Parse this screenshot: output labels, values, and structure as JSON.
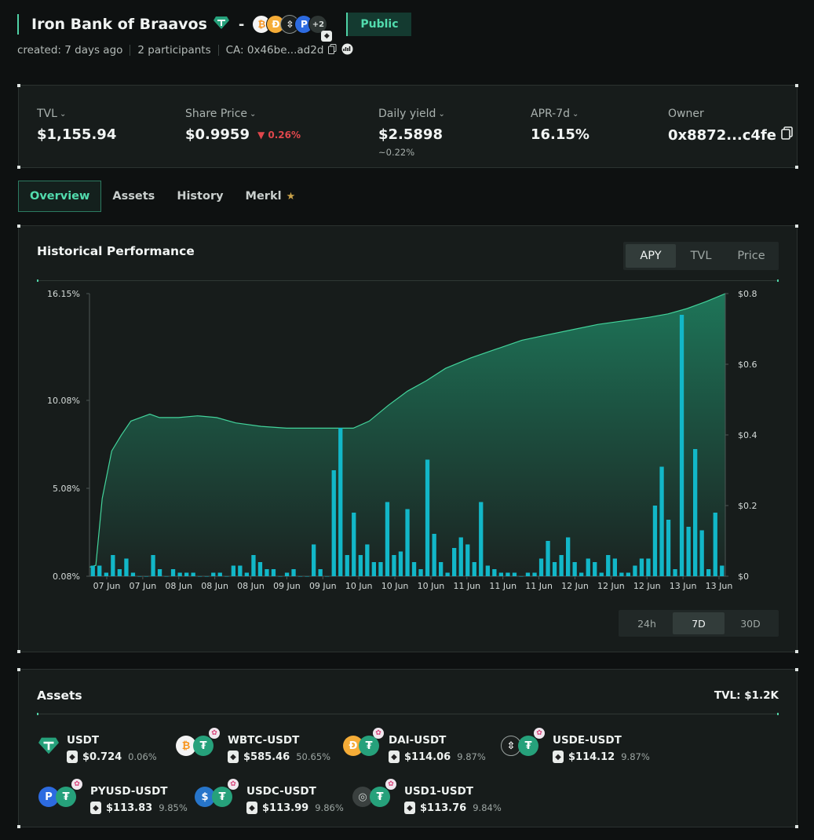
{
  "header": {
    "vault_name": "Iron Bank of Braavos",
    "separator": "-",
    "more_assets": "+2",
    "visibility": "Public",
    "created": "created: 7 days ago",
    "participants": "2 participants",
    "contract": "CA: 0x46be...ad2d"
  },
  "stats": {
    "tvl": {
      "label": "TVL",
      "value": "$1,155.94"
    },
    "share_price": {
      "label": "Share Price",
      "value": "$0.9959",
      "change": "0.26%"
    },
    "daily_yield": {
      "label": "Daily yield",
      "value": "$2.5898",
      "sub": "~0.22%"
    },
    "apr": {
      "label": "APR-7d",
      "value": "16.15%"
    },
    "owner": {
      "label": "Owner",
      "value": "0x8872...c4fe"
    }
  },
  "tabs": [
    "Overview",
    "Assets",
    "History",
    "Merkl"
  ],
  "performance": {
    "title": "Historical Performance",
    "metrics": [
      "APY",
      "TVL",
      "Price"
    ],
    "active_metric": "APY",
    "ranges": [
      "24h",
      "7D",
      "30D"
    ],
    "active_range": "7D"
  },
  "chart_data": {
    "type": "area+bar",
    "series": [
      {
        "name": "APY",
        "type": "area"
      },
      {
        "name": "Daily yield",
        "type": "bar"
      }
    ],
    "x_ticks": [
      "07 Jun",
      "07 Jun",
      "08 Jun",
      "08 Jun",
      "08 Jun",
      "09 Jun",
      "09 Jun",
      "10 Jun",
      "10 Jun",
      "10 Jun",
      "11 Jun",
      "11 Jun",
      "11 Jun",
      "12 Jun",
      "12 Jun",
      "12 Jun",
      "13 Jun",
      "13 Jun"
    ],
    "y_left_ticks": [
      "0.08%",
      "5.08%",
      "10.08%",
      "16.15%"
    ],
    "y_left_values": [
      0.08,
      5.08,
      10.08,
      16.15
    ],
    "y_right_ticks": [
      "$0",
      "$0.2",
      "$0.4",
      "$0.6",
      "$0.8"
    ],
    "ylim_left": [
      0.08,
      16.15
    ],
    "ylim_right": [
      0,
      0.8
    ],
    "apy_curve": [
      [
        0.0,
        0.6
      ],
      [
        0.01,
        0.7
      ],
      [
        0.02,
        4.5
      ],
      [
        0.035,
        7.2
      ],
      [
        0.05,
        8.1
      ],
      [
        0.065,
        8.9
      ],
      [
        0.08,
        9.1
      ],
      [
        0.095,
        9.3
      ],
      [
        0.11,
        9.1
      ],
      [
        0.14,
        9.1
      ],
      [
        0.17,
        9.2
      ],
      [
        0.2,
        9.1
      ],
      [
        0.23,
        8.8
      ],
      [
        0.27,
        8.6
      ],
      [
        0.31,
        8.5
      ],
      [
        0.35,
        8.5
      ],
      [
        0.39,
        8.5
      ],
      [
        0.415,
        8.5
      ],
      [
        0.44,
        8.9
      ],
      [
        0.47,
        9.8
      ],
      [
        0.5,
        10.6
      ],
      [
        0.53,
        11.2
      ],
      [
        0.56,
        11.9
      ],
      [
        0.6,
        12.5
      ],
      [
        0.64,
        13.0
      ],
      [
        0.68,
        13.5
      ],
      [
        0.72,
        13.8
      ],
      [
        0.76,
        14.1
      ],
      [
        0.8,
        14.4
      ],
      [
        0.84,
        14.6
      ],
      [
        0.88,
        14.8
      ],
      [
        0.91,
        15.0
      ],
      [
        0.94,
        15.3
      ],
      [
        0.97,
        15.7
      ],
      [
        1.0,
        16.15
      ]
    ],
    "bar_values": [
      0.03,
      0.03,
      0.01,
      0.06,
      0.02,
      0.05,
      0.01,
      0,
      0,
      0.06,
      0.02,
      0,
      0.02,
      0.01,
      0.01,
      0.01,
      0,
      0,
      0.01,
      0.01,
      0,
      0.03,
      0.03,
      0.01,
      0.06,
      0.04,
      0.02,
      0.02,
      0,
      0.01,
      0.02,
      0,
      0,
      0.09,
      0.02,
      0,
      0.3,
      0.42,
      0.06,
      0.18,
      0.06,
      0.09,
      0.04,
      0.04,
      0.21,
      0.06,
      0.07,
      0.19,
      0.04,
      0.02,
      0.33,
      0.12,
      0.04,
      0.01,
      0.08,
      0.11,
      0.09,
      0.04,
      0.21,
      0.03,
      0.02,
      0.01,
      0.01,
      0.01,
      0,
      0.01,
      0.01,
      0.05,
      0.1,
      0.04,
      0.06,
      0.11,
      0.04,
      0.01,
      0.05,
      0.04,
      0.01,
      0.06,
      0.05,
      0.01,
      0.01,
      0.03,
      0.05,
      0.05,
      0.2,
      0.31,
      0.16,
      0.02,
      0.74,
      0.14,
      0.36,
      0.13,
      0.02,
      0.18,
      0.03
    ]
  },
  "assets": {
    "title": "Assets",
    "tvl": "TVL: $1.2K",
    "items": [
      {
        "name": "USDT",
        "value": "$0.724",
        "pct": "0.06%"
      },
      {
        "name": "WBTC-USDT",
        "value": "$585.46",
        "pct": "50.65%"
      },
      {
        "name": "DAI-USDT",
        "value": "$114.06",
        "pct": "9.87%"
      },
      {
        "name": "USDE-USDT",
        "value": "$114.12",
        "pct": "9.87%"
      },
      {
        "name": "PYUSD-USDT",
        "value": "$113.83",
        "pct": "9.85%"
      },
      {
        "name": "USDC-USDT",
        "value": "$113.99",
        "pct": "9.86%"
      },
      {
        "name": "USD1-USDT",
        "value": "$113.76",
        "pct": "9.84%"
      }
    ]
  },
  "colors": {
    "accent": "#4fd1a5",
    "bar": "#12b7c8",
    "area_top": "#1e7a5c",
    "negative": "#e0474c"
  }
}
